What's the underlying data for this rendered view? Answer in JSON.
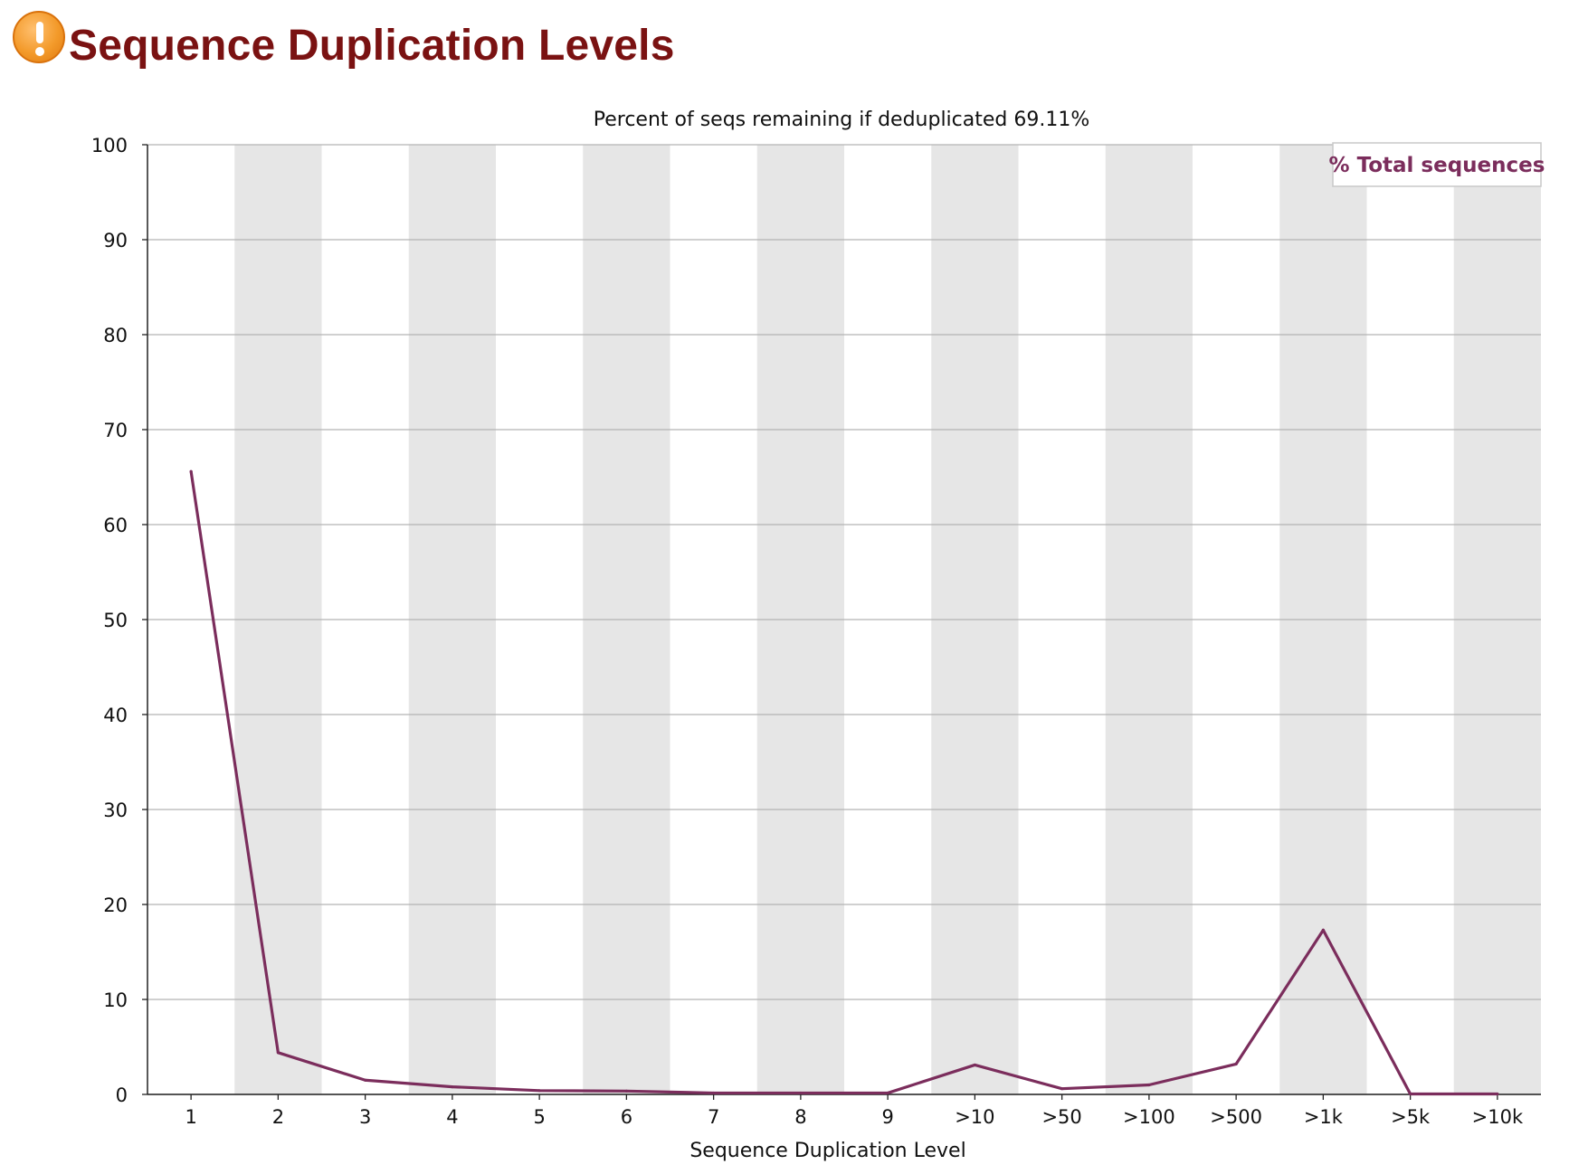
{
  "header": {
    "title": "Sequence Duplication Levels",
    "icon": "warning-icon",
    "title_color": "#7a1212"
  },
  "chart_data": {
    "type": "line",
    "title": "Percent of seqs remaining if deduplicated 69.11%",
    "xlabel": "Sequence Duplication Level",
    "ylabel": "",
    "categories": [
      "1",
      "2",
      "3",
      "4",
      "5",
      "6",
      "7",
      "8",
      "9",
      ">10",
      ">50",
      ">100",
      ">500",
      ">1k",
      ">5k",
      ">10k"
    ],
    "series": [
      {
        "name": "% Total sequences",
        "color": "#7b2d5c",
        "values": [
          65.6,
          4.4,
          1.5,
          0.8,
          0.4,
          0.35,
          0.15,
          0.15,
          0.15,
          3.1,
          0.6,
          1.0,
          3.2,
          17.3,
          0.05,
          0.05
        ]
      }
    ],
    "ylim": [
      0,
      100
    ],
    "yticks": [
      "0",
      "10",
      "20",
      "30",
      "40",
      "50",
      "60",
      "70",
      "80",
      "90",
      "100"
    ],
    "grid": true,
    "alternating_band_color": "#e6e6e6",
    "legend_position": "top-right"
  }
}
